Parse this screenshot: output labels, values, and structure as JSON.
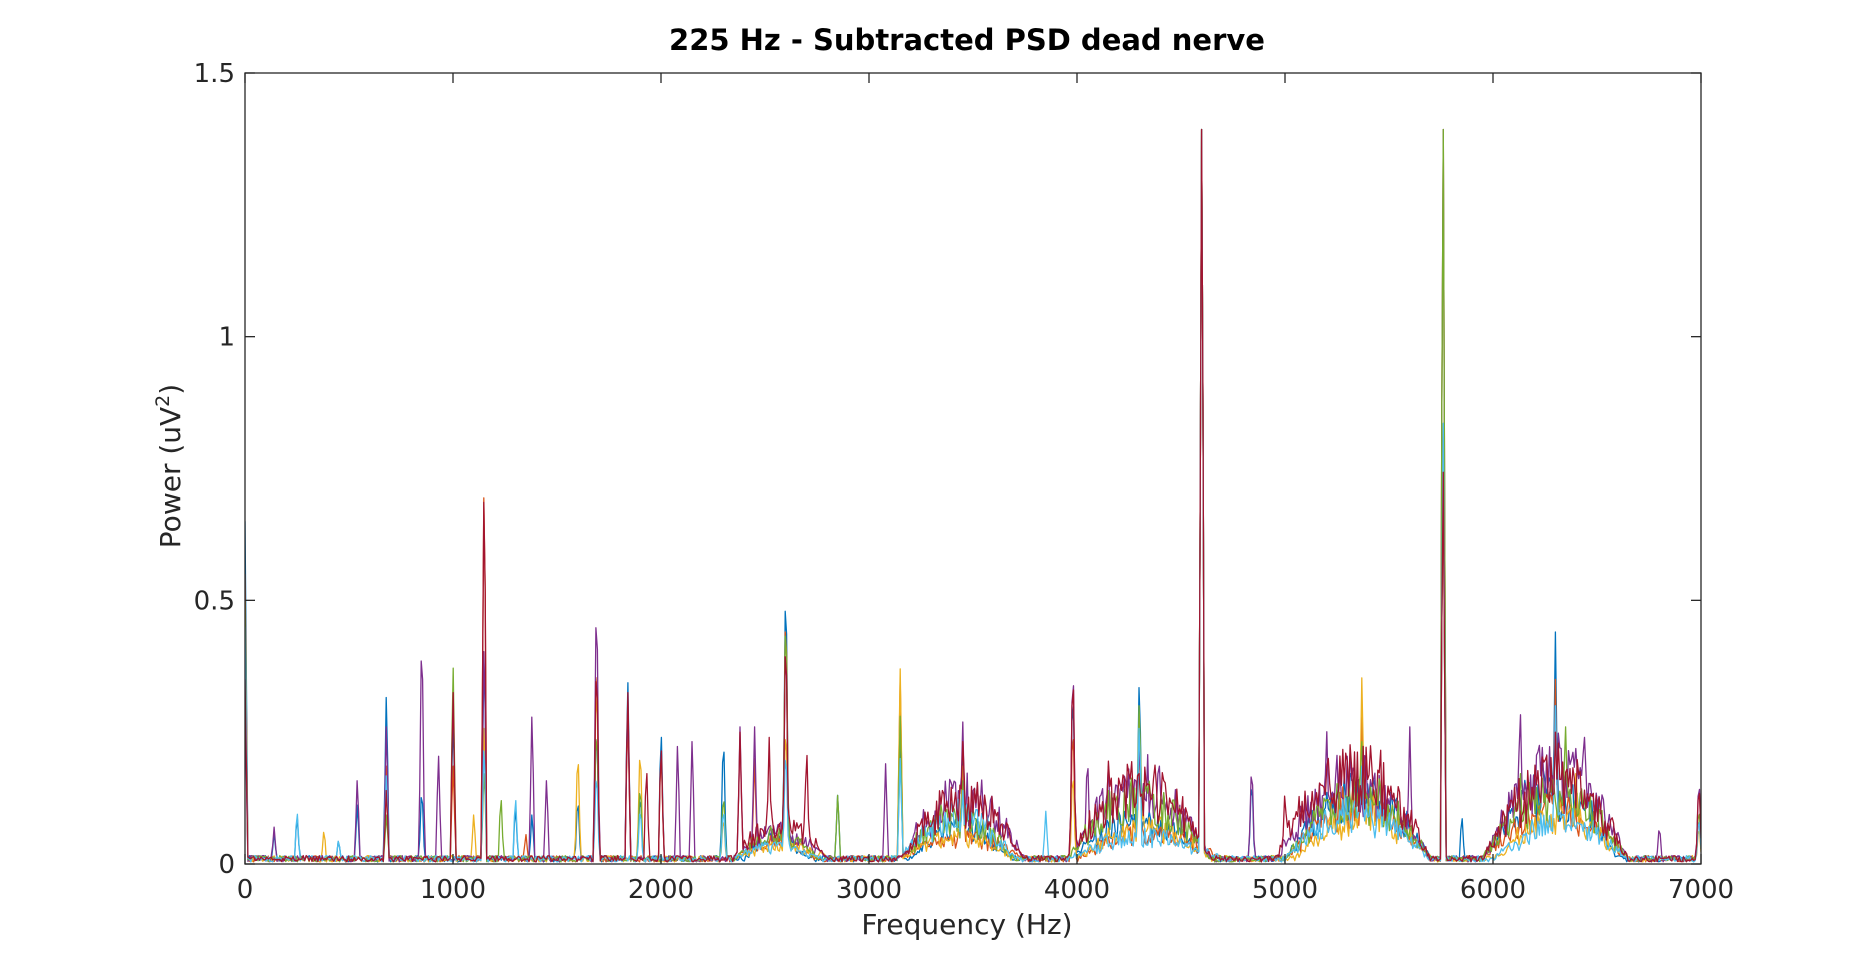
{
  "chart_data": {
    "type": "line",
    "title": "225 Hz - Subtracted PSD dead nerve",
    "xlabel": "Frequency (Hz)",
    "ylabel": {
      "base": "Power (uV",
      "superscript": "2",
      "suffix": ")"
    },
    "xlim": [
      0,
      7000
    ],
    "ylim": [
      0,
      1.5
    ],
    "xticks": [
      0,
      1000,
      2000,
      3000,
      4000,
      5000,
      6000,
      7000
    ],
    "xtick_labels": [
      "0",
      "1000",
      "2000",
      "3000",
      "4000",
      "5000",
      "6000",
      "7000"
    ],
    "yticks": [
      0,
      0.5,
      1,
      1.5
    ],
    "ytick_labels": [
      "0",
      "0.5",
      "1",
      "1.5"
    ],
    "grid": false,
    "legend": "none",
    "colors": [
      "#0072BD",
      "#D95319",
      "#EDB120",
      "#7E2F8E",
      "#77AC30",
      "#4DBEEE",
      "#A2142F"
    ],
    "series": [
      {
        "color": "#0072BD",
        "peaks": [
          [
            0,
            0.65
          ],
          [
            140,
            0.06
          ],
          [
            250,
            0.1
          ],
          [
            450,
            0.05
          ],
          [
            540,
            0.12
          ],
          [
            680,
            0.34
          ],
          [
            850,
            0.16
          ],
          [
            1000,
            0.3
          ],
          [
            1150,
            0.45
          ],
          [
            1300,
            0.12
          ],
          [
            1380,
            0.1
          ],
          [
            1600,
            0.14
          ],
          [
            1690,
            0.3
          ],
          [
            1840,
            0.37
          ],
          [
            1900,
            0.15
          ],
          [
            2000,
            0.28
          ],
          [
            2300,
            0.27
          ],
          [
            2600,
            0.61
          ],
          [
            2850,
            0.14
          ],
          [
            3150,
            0.22
          ],
          [
            3450,
            0.22
          ],
          [
            3980,
            0.38
          ],
          [
            4300,
            0.39
          ],
          [
            4600,
            1.5
          ],
          [
            4840,
            0.18
          ],
          [
            5200,
            0.12
          ],
          [
            5370,
            0.2
          ],
          [
            5760,
            0.8
          ],
          [
            5850,
            0.1
          ],
          [
            6300,
            0.44
          ],
          [
            6500,
            0.15
          ],
          [
            6990,
            0.1
          ]
        ],
        "humps": [
          [
            2400,
            2700,
            0.05
          ],
          [
            3200,
            3700,
            0.07
          ],
          [
            3950,
            4650,
            0.08
          ],
          [
            5000,
            5700,
            0.15
          ],
          [
            5950,
            6600,
            0.16
          ]
        ]
      },
      {
        "color": "#D95319",
        "peaks": [
          [
            0,
            0.55
          ],
          [
            680,
            0.2
          ],
          [
            1000,
            0.2
          ],
          [
            1150,
            0.81
          ],
          [
            1350,
            0.06
          ],
          [
            1690,
            0.45
          ],
          [
            1840,
            0.3
          ],
          [
            2000,
            0.24
          ],
          [
            2450,
            0.2
          ],
          [
            2600,
            0.56
          ],
          [
            3150,
            0.35
          ],
          [
            3450,
            0.2
          ],
          [
            3980,
            0.3
          ],
          [
            4300,
            0.3
          ],
          [
            4600,
            1.5
          ],
          [
            5370,
            0.3
          ],
          [
            5760,
            0.8
          ],
          [
            6300,
            0.35
          ],
          [
            6990,
            0.1
          ]
        ],
        "humps": [
          [
            2350,
            2750,
            0.04
          ],
          [
            3150,
            3750,
            0.05
          ],
          [
            4000,
            4700,
            0.06
          ],
          [
            5000,
            5700,
            0.12
          ],
          [
            5950,
            6650,
            0.1
          ]
        ]
      },
      {
        "color": "#EDB120",
        "peaks": [
          [
            0,
            0.4
          ],
          [
            380,
            0.07
          ],
          [
            680,
            0.15
          ],
          [
            1100,
            0.1
          ],
          [
            1150,
            0.3
          ],
          [
            1600,
            0.24
          ],
          [
            1690,
            0.4
          ],
          [
            1900,
            0.25
          ],
          [
            2300,
            0.1
          ],
          [
            2600,
            0.3
          ],
          [
            3150,
            0.37
          ],
          [
            3450,
            0.2
          ],
          [
            3980,
            0.2
          ],
          [
            4300,
            0.25
          ],
          [
            4600,
            1.5
          ],
          [
            5370,
            0.38
          ],
          [
            5760,
            1.5
          ],
          [
            6400,
            0.2
          ],
          [
            6990,
            0.08
          ]
        ],
        "humps": [
          [
            2350,
            2800,
            0.03
          ],
          [
            3150,
            3700,
            0.05
          ],
          [
            4000,
            4650,
            0.07
          ],
          [
            5050,
            5700,
            0.1
          ],
          [
            6000,
            6650,
            0.09
          ]
        ]
      },
      {
        "color": "#7E2F8E",
        "peaks": [
          [
            0,
            0.3
          ],
          [
            140,
            0.07
          ],
          [
            540,
            0.17
          ],
          [
            680,
            0.28
          ],
          [
            850,
            0.49
          ],
          [
            930,
            0.22
          ],
          [
            1150,
            0.47
          ],
          [
            1380,
            0.3
          ],
          [
            1450,
            0.17
          ],
          [
            1690,
            0.57
          ],
          [
            1840,
            0.33
          ],
          [
            2080,
            0.24
          ],
          [
            2150,
            0.25
          ],
          [
            2380,
            0.26
          ],
          [
            2450,
            0.26
          ],
          [
            2600,
            0.5
          ],
          [
            3080,
            0.19
          ],
          [
            3450,
            0.29
          ],
          [
            3980,
            0.43
          ],
          [
            4050,
            0.23
          ],
          [
            4150,
            0.2
          ],
          [
            4300,
            0.26
          ],
          [
            4600,
            1.5
          ],
          [
            4840,
            0.21
          ],
          [
            5200,
            0.27
          ],
          [
            5300,
            0.22
          ],
          [
            5600,
            0.26
          ],
          [
            5760,
            1.5
          ],
          [
            6130,
            0.33
          ],
          [
            6300,
            0.3
          ],
          [
            6440,
            0.24
          ],
          [
            6800,
            0.08
          ],
          [
            6990,
            0.18
          ]
        ],
        "humps": [
          [
            2350,
            2800,
            0.06
          ],
          [
            3150,
            3750,
            0.14
          ],
          [
            3950,
            4650,
            0.17
          ],
          [
            4950,
            5700,
            0.17
          ],
          [
            5950,
            6650,
            0.2
          ]
        ]
      },
      {
        "color": "#77AC30",
        "peaks": [
          [
            0,
            0.5
          ],
          [
            680,
            0.1
          ],
          [
            1000,
            0.4
          ],
          [
            1150,
            0.2
          ],
          [
            1230,
            0.14
          ],
          [
            1690,
            0.3
          ],
          [
            1900,
            0.17
          ],
          [
            2300,
            0.15
          ],
          [
            2600,
            0.55
          ],
          [
            2850,
            0.14
          ],
          [
            3150,
            0.28
          ],
          [
            3450,
            0.17
          ],
          [
            4150,
            0.15
          ],
          [
            4300,
            0.35
          ],
          [
            4600,
            1.5
          ],
          [
            5370,
            0.25
          ],
          [
            5760,
            1.5
          ],
          [
            6130,
            0.2
          ],
          [
            6350,
            0.28
          ],
          [
            6990,
            0.12
          ]
        ],
        "humps": [
          [
            2350,
            2750,
            0.05
          ],
          [
            3150,
            3700,
            0.09
          ],
          [
            3950,
            4650,
            0.13
          ],
          [
            5000,
            5700,
            0.14
          ],
          [
            5950,
            6650,
            0.15
          ]
        ]
      },
      {
        "color": "#4DBEEE",
        "peaks": [
          [
            0,
            0.45
          ],
          [
            250,
            0.11
          ],
          [
            450,
            0.05
          ],
          [
            680,
            0.18
          ],
          [
            1150,
            0.25
          ],
          [
            1300,
            0.14
          ],
          [
            1690,
            0.2
          ],
          [
            1900,
            0.12
          ],
          [
            2300,
            0.12
          ],
          [
            2600,
            0.25
          ],
          [
            3150,
            0.2
          ],
          [
            3450,
            0.15
          ],
          [
            3850,
            0.1
          ],
          [
            4300,
            0.3
          ],
          [
            4600,
            1.5
          ],
          [
            5370,
            0.2
          ],
          [
            5760,
            0.9
          ],
          [
            6300,
            0.3
          ],
          [
            6990,
            0.1
          ]
        ],
        "humps": [
          [
            2350,
            2750,
            0.03
          ],
          [
            3150,
            3700,
            0.1
          ],
          [
            3950,
            4700,
            0.05
          ],
          [
            5000,
            5700,
            0.1
          ],
          [
            6000,
            6650,
            0.08
          ]
        ]
      },
      {
        "color": "#A2142F",
        "peaks": [
          [
            0,
            0.35
          ],
          [
            680,
            0.15
          ],
          [
            1000,
            0.35
          ],
          [
            1150,
            0.8
          ],
          [
            1690,
            0.44
          ],
          [
            1840,
            0.35
          ],
          [
            1930,
            0.2
          ],
          [
            2000,
            0.25
          ],
          [
            2380,
            0.25
          ],
          [
            2520,
            0.24
          ],
          [
            2600,
            0.5
          ],
          [
            2700,
            0.24
          ],
          [
            3450,
            0.25
          ],
          [
            3980,
            0.42
          ],
          [
            4150,
            0.21
          ],
          [
            4300,
            0.2
          ],
          [
            4600,
            1.5
          ],
          [
            5000,
            0.15
          ],
          [
            5300,
            0.21
          ],
          [
            5450,
            0.22
          ],
          [
            5760,
            0.8
          ],
          [
            6300,
            0.25
          ],
          [
            6990,
            0.17
          ]
        ],
        "humps": [
          [
            2350,
            2800,
            0.08
          ],
          [
            3150,
            3750,
            0.13
          ],
          [
            3950,
            4650,
            0.16
          ],
          [
            4950,
            5700,
            0.2
          ],
          [
            5950,
            6650,
            0.18
          ]
        ]
      }
    ]
  }
}
